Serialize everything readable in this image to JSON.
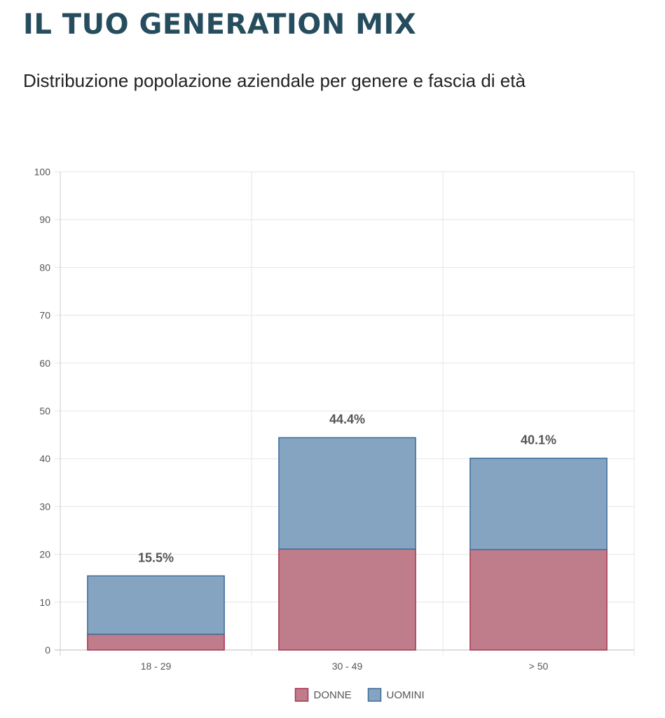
{
  "page": {
    "title": "IL TUO GENERATION MIX",
    "subtitle": "Distribuzione popolazione aziendale per genere e fascia di età"
  },
  "chart_data": {
    "type": "bar",
    "stacked": true,
    "categories": [
      "18 - 29",
      "30 - 49",
      "> 50"
    ],
    "series": [
      {
        "name": "DONNE",
        "values": [
          3.3,
          21.1,
          21.0
        ],
        "color": "#bf7d8c",
        "border": "#a8354f"
      },
      {
        "name": "UOMINI",
        "values": [
          12.2,
          23.3,
          19.1
        ],
        "color": "#84a4c1",
        "border": "#3e6e9c"
      }
    ],
    "totals": [
      15.5,
      44.4,
      40.1
    ],
    "total_labels": [
      "15.5%",
      "44.4%",
      "40.1%"
    ],
    "ylim": [
      0,
      100
    ],
    "yticks": [
      0,
      10,
      20,
      30,
      40,
      50,
      60,
      70,
      80,
      90,
      100
    ],
    "xlabel": "",
    "ylabel": "",
    "grid": true,
    "legend": "bottom"
  }
}
